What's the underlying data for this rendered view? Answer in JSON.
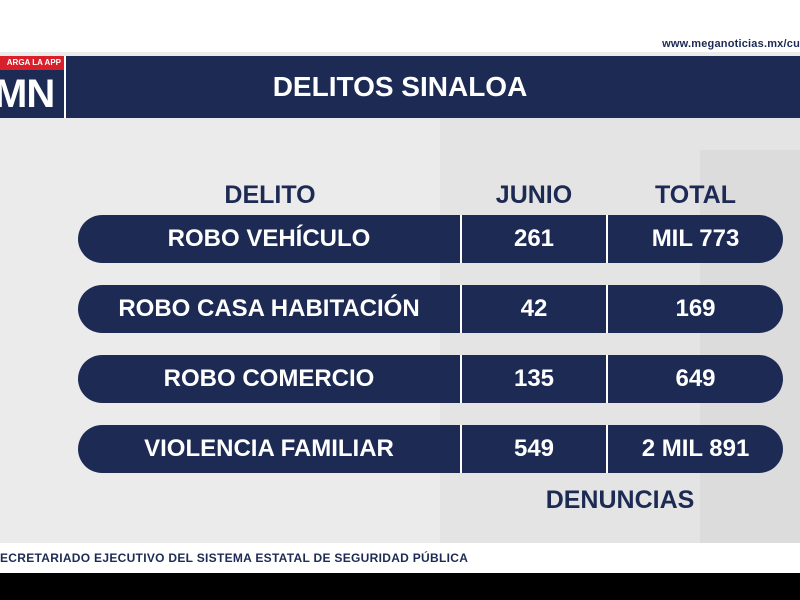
{
  "broadcast": {
    "logo_tag": "ARGA LA APP",
    "logo_mark": "MN",
    "url": "www.meganoticias.mx/cu",
    "title": "DELITOS SINALOA"
  },
  "table": {
    "headers": {
      "delito": "DELITO",
      "junio": "JUNIO",
      "total": "TOTAL"
    },
    "rows": [
      {
        "delito": "ROBO VEHÍCULO",
        "junio": "261",
        "total": "MIL 773"
      },
      {
        "delito": "ROBO CASA HABITACIÓN",
        "junio": "42",
        "total": "169"
      },
      {
        "delito": "ROBO COMERCIO",
        "junio": "135",
        "total": "649"
      },
      {
        "delito": "VIOLENCIA FAMILIAR",
        "junio": "549",
        "total": "2 MIL 891"
      }
    ],
    "footnote": "DENUNCIAS"
  },
  "source": "ECRETARIADO EJECUTIVO DEL SISTEMA ESTATAL DE SEGURIDAD PÚBLICA",
  "colors": {
    "navy": "#1d2b54",
    "red": "#d9202a",
    "background": "#ebebeb"
  }
}
